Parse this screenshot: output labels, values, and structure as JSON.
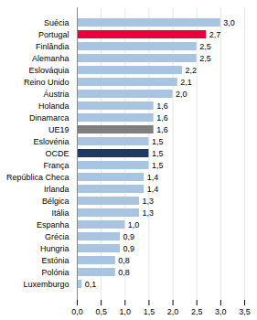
{
  "chart_data": {
    "type": "bar",
    "orientation": "horizontal",
    "categories": [
      "Luxemburgo",
      "Polónia",
      "Estónia",
      "Hungria",
      "Grécia",
      "Espanha",
      "Itália",
      "Bélgica",
      "Irlanda",
      "República Checa",
      "França",
      "OCDE",
      "Eslovénia",
      "UE19",
      "Dinamarca",
      "Holanda",
      "Áustria",
      "Reino Unido",
      "Eslováquia",
      "Alemanha",
      "Finlândia",
      "Portugal",
      "Suécia"
    ],
    "values": [
      0.1,
      0.8,
      0.8,
      0.9,
      0.9,
      1.0,
      1.3,
      1.3,
      1.4,
      1.4,
      1.5,
      1.5,
      1.5,
      1.6,
      1.6,
      1.6,
      2.0,
      2.1,
      2.2,
      2.5,
      2.5,
      2.7,
      3.0
    ],
    "value_labels": [
      "0,1",
      "0,8",
      "0,8",
      "0,9",
      "0,9",
      "1,0",
      "1,3",
      "1,3",
      "1,4",
      "1,4",
      "1,5",
      "1,5",
      "1,5",
      "1,6",
      "1,6",
      "1,6",
      "2,0",
      "2,1",
      "2,2",
      "2,5",
      "2,5",
      "2,7",
      "3,0"
    ],
    "colors": [
      "#a8c4e0",
      "#a8c4e0",
      "#a8c4e0",
      "#a8c4e0",
      "#a8c4e0",
      "#a8c4e0",
      "#a8c4e0",
      "#a8c4e0",
      "#a8c4e0",
      "#a8c4e0",
      "#a8c4e0",
      "#1f3864",
      "#a8c4e0",
      "#7f7f7f",
      "#a8c4e0",
      "#a8c4e0",
      "#a8c4e0",
      "#a8c4e0",
      "#a8c4e0",
      "#a8c4e0",
      "#a8c4e0",
      "#e8003d",
      "#a8c4e0"
    ],
    "xlim": [
      0,
      3.5
    ],
    "xticks": [
      {
        "value": 0.0,
        "label": "0,0"
      },
      {
        "value": 0.5,
        "label": "0,5"
      },
      {
        "value": 1.0,
        "label": "1,0"
      },
      {
        "value": 1.5,
        "label": "1,5"
      },
      {
        "value": 2.0,
        "label": "2,0"
      },
      {
        "value": 2.5,
        "label": "2,5"
      },
      {
        "value": 3.0,
        "label": "3,0"
      },
      {
        "value": 3.5,
        "label": "3,5"
      }
    ],
    "grid": true,
    "data_labels": true
  }
}
